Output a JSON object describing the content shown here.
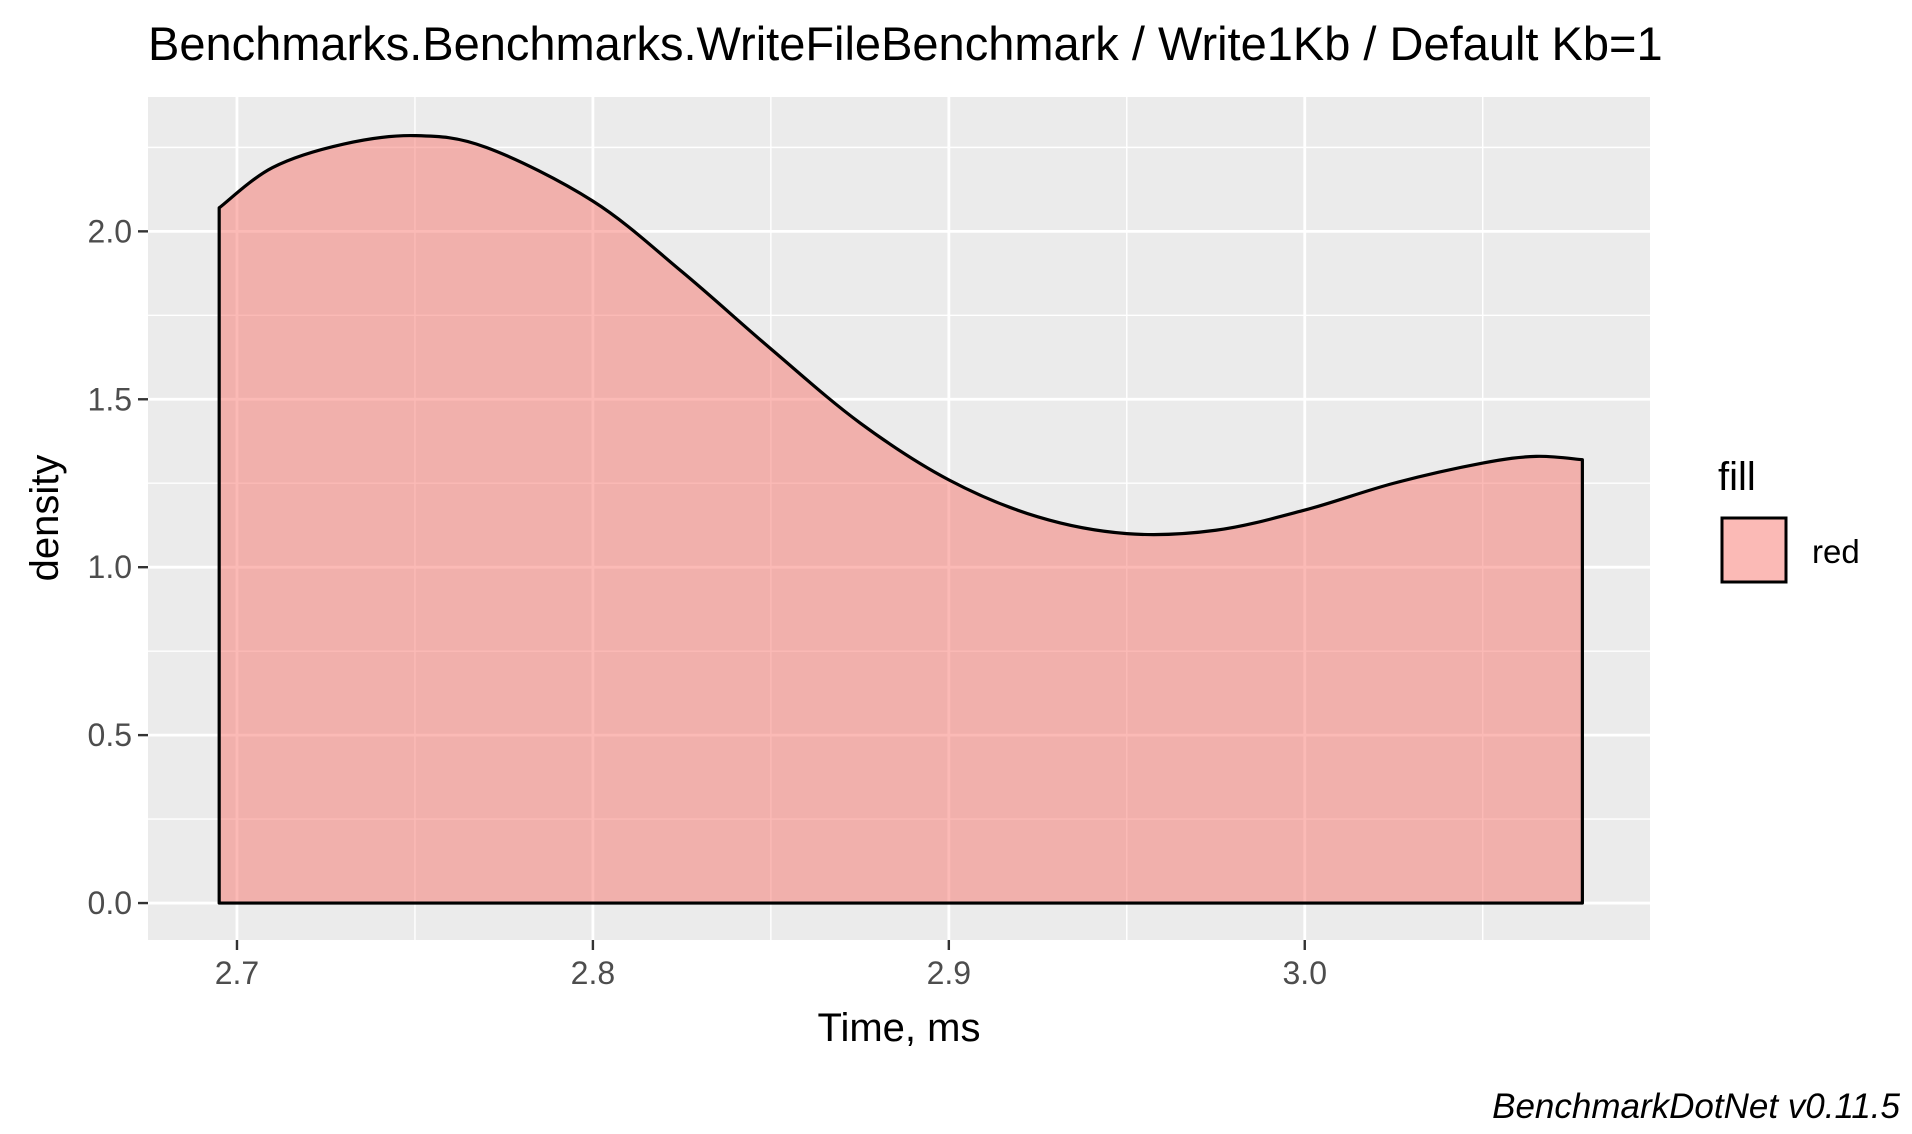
{
  "chart_data": {
    "type": "area",
    "title": "Benchmarks.Benchmarks.WriteFileBenchmark / Write1Kb / Default Kb=1",
    "xlabel": "Time, ms",
    "ylabel": "density",
    "caption": "BenchmarkDotNet v0.11.5",
    "xlim": [
      2.675,
      3.097
    ],
    "ylim": [
      -0.11,
      2.4
    ],
    "x_ticks": [
      2.7,
      2.8,
      2.9,
      3.0
    ],
    "x_tick_labels": [
      "2.7",
      "2.8",
      "2.9",
      "3.0"
    ],
    "y_ticks": [
      0.0,
      0.5,
      1.0,
      1.5,
      2.0
    ],
    "y_tick_labels": [
      "0.0",
      "0.5",
      "1.0",
      "1.5",
      "2.0"
    ],
    "grid": true,
    "legend": {
      "title": "fill",
      "position": "right",
      "entries": [
        {
          "label": "red",
          "color": "#F8766D"
        }
      ]
    },
    "series": [
      {
        "name": "red",
        "fill_color": "#F8766D",
        "fill_opacity": 0.5,
        "outline_color": "#000000",
        "x": [
          2.695,
          2.71,
          2.73,
          2.75,
          2.77,
          2.8,
          2.825,
          2.85,
          2.875,
          2.9,
          2.925,
          2.95,
          2.975,
          3.0,
          3.025,
          3.05,
          3.065,
          3.078
        ],
        "y": [
          2.07,
          2.19,
          2.26,
          2.285,
          2.25,
          2.09,
          1.88,
          1.65,
          1.43,
          1.26,
          1.15,
          1.1,
          1.11,
          1.17,
          1.25,
          1.31,
          1.33,
          1.32
        ]
      }
    ]
  },
  "colors": {
    "panel_background": "#EBEBEB",
    "grid_line": "#FFFFFF",
    "axis_text": "#4D4D4D",
    "text": "#000000"
  }
}
